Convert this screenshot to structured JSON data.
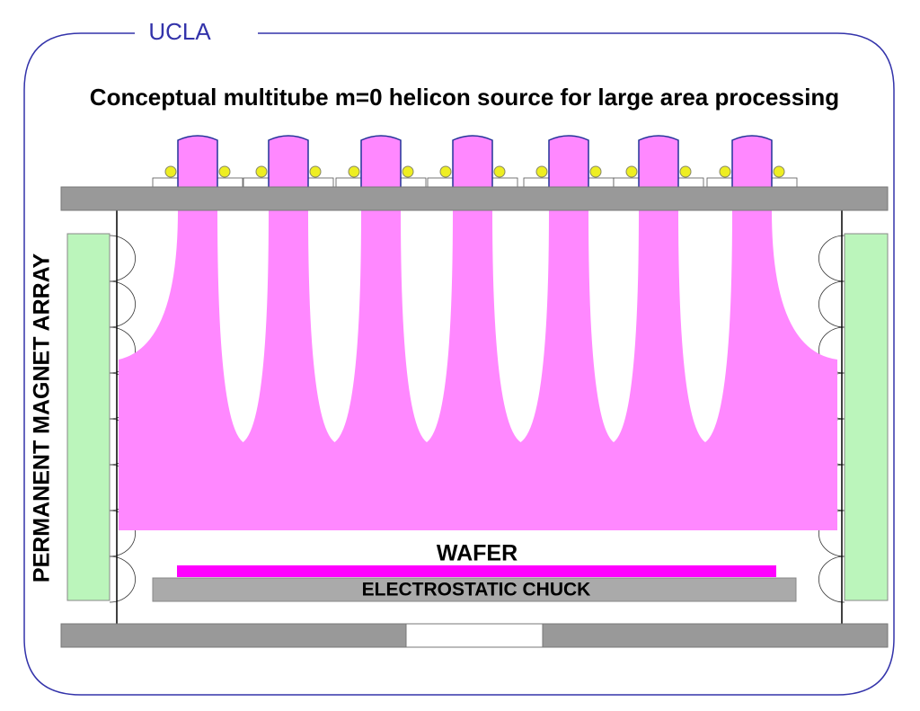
{
  "header": {
    "logo": "UCLA"
  },
  "title": "Conceptual multitube m=0 helicon source for large area processing",
  "labels": {
    "magnets": "PERMANENT MAGNET ARRAY",
    "wafer": "WAFER",
    "chuck": "ELECTROSTATIC CHUCK"
  }
}
